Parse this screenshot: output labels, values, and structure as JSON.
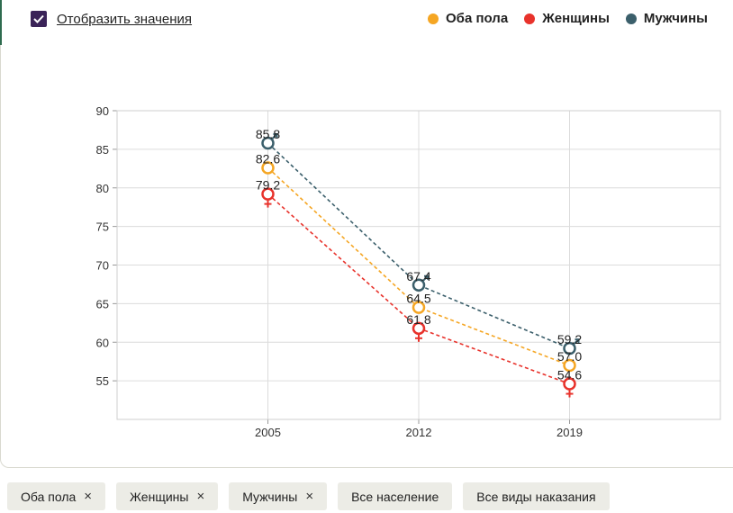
{
  "toggle": {
    "label": "Отобразить значения",
    "checked": true
  },
  "legend": [
    {
      "label": "Оба пола",
      "color": "#f5a623"
    },
    {
      "label": "Женщины",
      "color": "#e8322b"
    },
    {
      "label": "Мужчины",
      "color": "#3b5f6b"
    }
  ],
  "chips": [
    {
      "label": "Оба пола",
      "close": "×"
    },
    {
      "label": "Женщины",
      "close": "×"
    },
    {
      "label": "Мужчины",
      "close": "×"
    },
    {
      "label": "Все население"
    },
    {
      "label": "Все виды наказания"
    }
  ],
  "chart_data": {
    "type": "line",
    "x": [
      "2005",
      "2012",
      "2019"
    ],
    "ylim": [
      50,
      90
    ],
    "yticks": [
      55,
      60,
      65,
      70,
      75,
      80,
      85,
      90
    ],
    "grid": true,
    "series": [
      {
        "name": "Мужчины",
        "color": "#3b5f6b",
        "symbol": "male",
        "values": [
          85.8,
          67.4,
          59.2
        ],
        "labels": [
          "85.8",
          "67.4",
          "59.2"
        ]
      },
      {
        "name": "Оба пола",
        "color": "#f5a623",
        "symbol": "both",
        "values": [
          82.6,
          64.5,
          57.0
        ],
        "labels": [
          "82.6",
          "64.5",
          "57.0"
        ]
      },
      {
        "name": "Женщины",
        "color": "#e8322b",
        "symbol": "female",
        "values": [
          79.2,
          61.8,
          54.6
        ],
        "labels": [
          "79.2",
          "61.8",
          "54.6"
        ]
      }
    ]
  }
}
